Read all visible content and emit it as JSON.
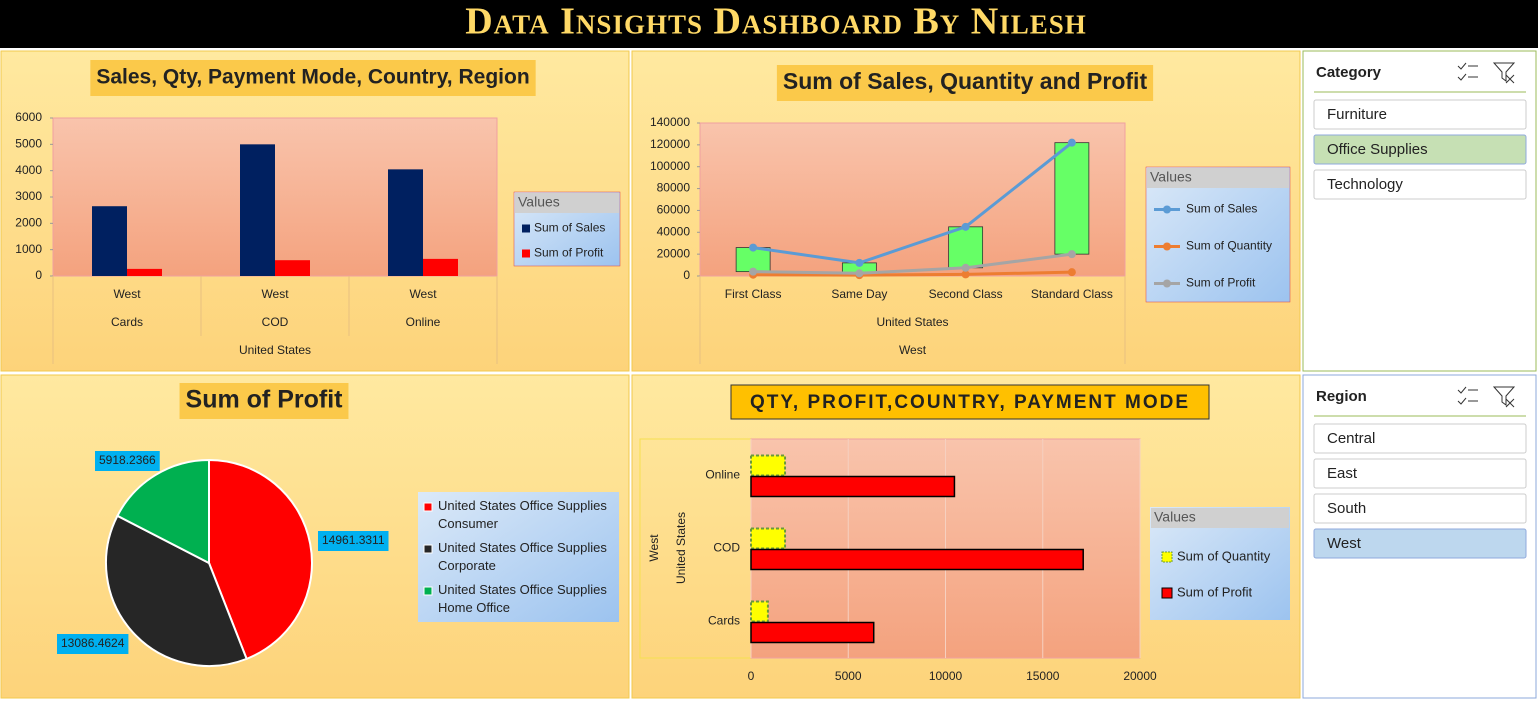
{
  "header": {
    "title": "Data Insights Dashboard By Nilesh"
  },
  "chart_data": [
    {
      "type": "bar",
      "title": "Sales, Qty, Payment Mode, Country, Region",
      "categories": [
        "Cards",
        "COD",
        "Online"
      ],
      "subcategories": [
        "West",
        "West",
        "West"
      ],
      "group_label": "United States",
      "series": [
        {
          "name": "Sum of Sales",
          "color": "#002060",
          "values": [
            2650,
            5000,
            4050
          ]
        },
        {
          "name": "Sum of Profit",
          "color": "#ff0000",
          "values": [
            270,
            600,
            650
          ]
        }
      ],
      "ylim": [
        0,
        6000
      ],
      "yticks": [
        0,
        1000,
        2000,
        3000,
        4000,
        5000,
        6000
      ],
      "legend_title": "Values"
    },
    {
      "type": "line",
      "title": "Sum of Sales, Quantity and Profit",
      "categories": [
        "First Class",
        "Same Day",
        "Second Class",
        "Standard Class"
      ],
      "group_labels": [
        "United States",
        "West"
      ],
      "series": [
        {
          "name": "Sum of Sales",
          "color": "#5b9bd5",
          "values": [
            26000,
            12000,
            45000,
            122000
          ]
        },
        {
          "name": "Sum of Quantity",
          "color": "#ed7d31",
          "values": [
            1200,
            800,
            1500,
            3500
          ]
        },
        {
          "name": "Sum of Profit",
          "color": "#a5a5a5",
          "values": [
            4000,
            2500,
            7500,
            20000
          ]
        }
      ],
      "up_down_bars": true,
      "up_bar_color": "#66ff66",
      "ylim": [
        0,
        140000
      ],
      "yticks": [
        0,
        20000,
        40000,
        60000,
        80000,
        100000,
        120000,
        140000
      ],
      "legend_title": "Values"
    },
    {
      "type": "pie",
      "title": "Sum of Profit",
      "categories": [
        "United States Office Supplies Consumer",
        "United States Office Supplies Corporate",
        "United States Office Supplies Home Office"
      ],
      "values": [
        14961.3311,
        13086.4624,
        5918.2366
      ],
      "colors": [
        "#ff0000",
        "#262626",
        "#00b050"
      ]
    },
    {
      "type": "hbar",
      "title": "QTY, PROFIT,COUNTRY, PAYMENT MODE",
      "categories": [
        "Cards",
        "COD",
        "Online"
      ],
      "group_labels": [
        "West",
        "United States"
      ],
      "series": [
        {
          "name": "Sum of Quantity",
          "color": "#ffff00",
          "values": [
            870,
            1750,
            1750
          ]
        },
        {
          "name": "Sum of Profit",
          "color": "#ff0000",
          "values": [
            6310,
            17080,
            10460
          ]
        }
      ],
      "xlim": [
        0,
        20000
      ],
      "xticks": [
        0,
        5000,
        10000,
        15000,
        20000
      ],
      "grid": true,
      "legend_title": "Values"
    }
  ],
  "slicers": [
    {
      "title": "Category",
      "items": [
        "Furniture",
        "Office Supplies",
        "Technology"
      ],
      "selected": 1,
      "color": "#c6e0b4"
    },
    {
      "title": "Region",
      "items": [
        "Central",
        "East",
        "South",
        "West"
      ],
      "selected": 3,
      "color": "#bdd7ee"
    }
  ]
}
